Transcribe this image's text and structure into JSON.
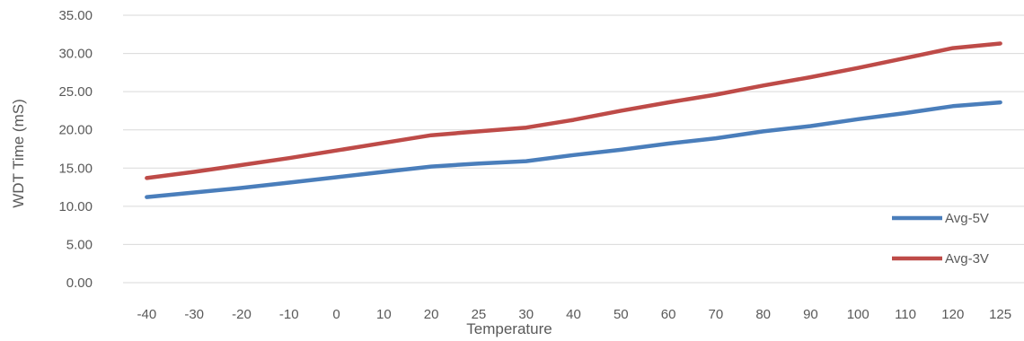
{
  "chart_data": {
    "type": "line",
    "title": "",
    "xlabel": "Temperature",
    "ylabel": "WDT Time (mS)",
    "categories": [
      "-40",
      "-30",
      "-20",
      "-10",
      "0",
      "10",
      "20",
      "25",
      "30",
      "40",
      "50",
      "60",
      "70",
      "80",
      "90",
      "100",
      "110",
      "120",
      "125"
    ],
    "ylim": [
      0,
      35
    ],
    "yticks": [
      "0.00",
      "5.00",
      "10.00",
      "15.00",
      "20.00",
      "25.00",
      "30.00",
      "35.00"
    ],
    "grid": true,
    "legend": "bottom-right",
    "series": [
      {
        "name": "Avg-5V",
        "color": "#4a7ebb",
        "values": [
          11.2,
          11.8,
          12.4,
          13.1,
          13.8,
          14.5,
          15.2,
          15.6,
          15.9,
          16.7,
          17.4,
          18.2,
          18.9,
          19.8,
          20.5,
          21.4,
          22.2,
          23.1,
          23.6
        ]
      },
      {
        "name": "Avg-3V",
        "color": "#be4b48",
        "values": [
          13.7,
          14.5,
          15.4,
          16.3,
          17.3,
          18.3,
          19.3,
          19.8,
          20.3,
          21.3,
          22.5,
          23.6,
          24.6,
          25.8,
          26.9,
          28.1,
          29.4,
          30.7,
          31.3
        ]
      }
    ]
  }
}
